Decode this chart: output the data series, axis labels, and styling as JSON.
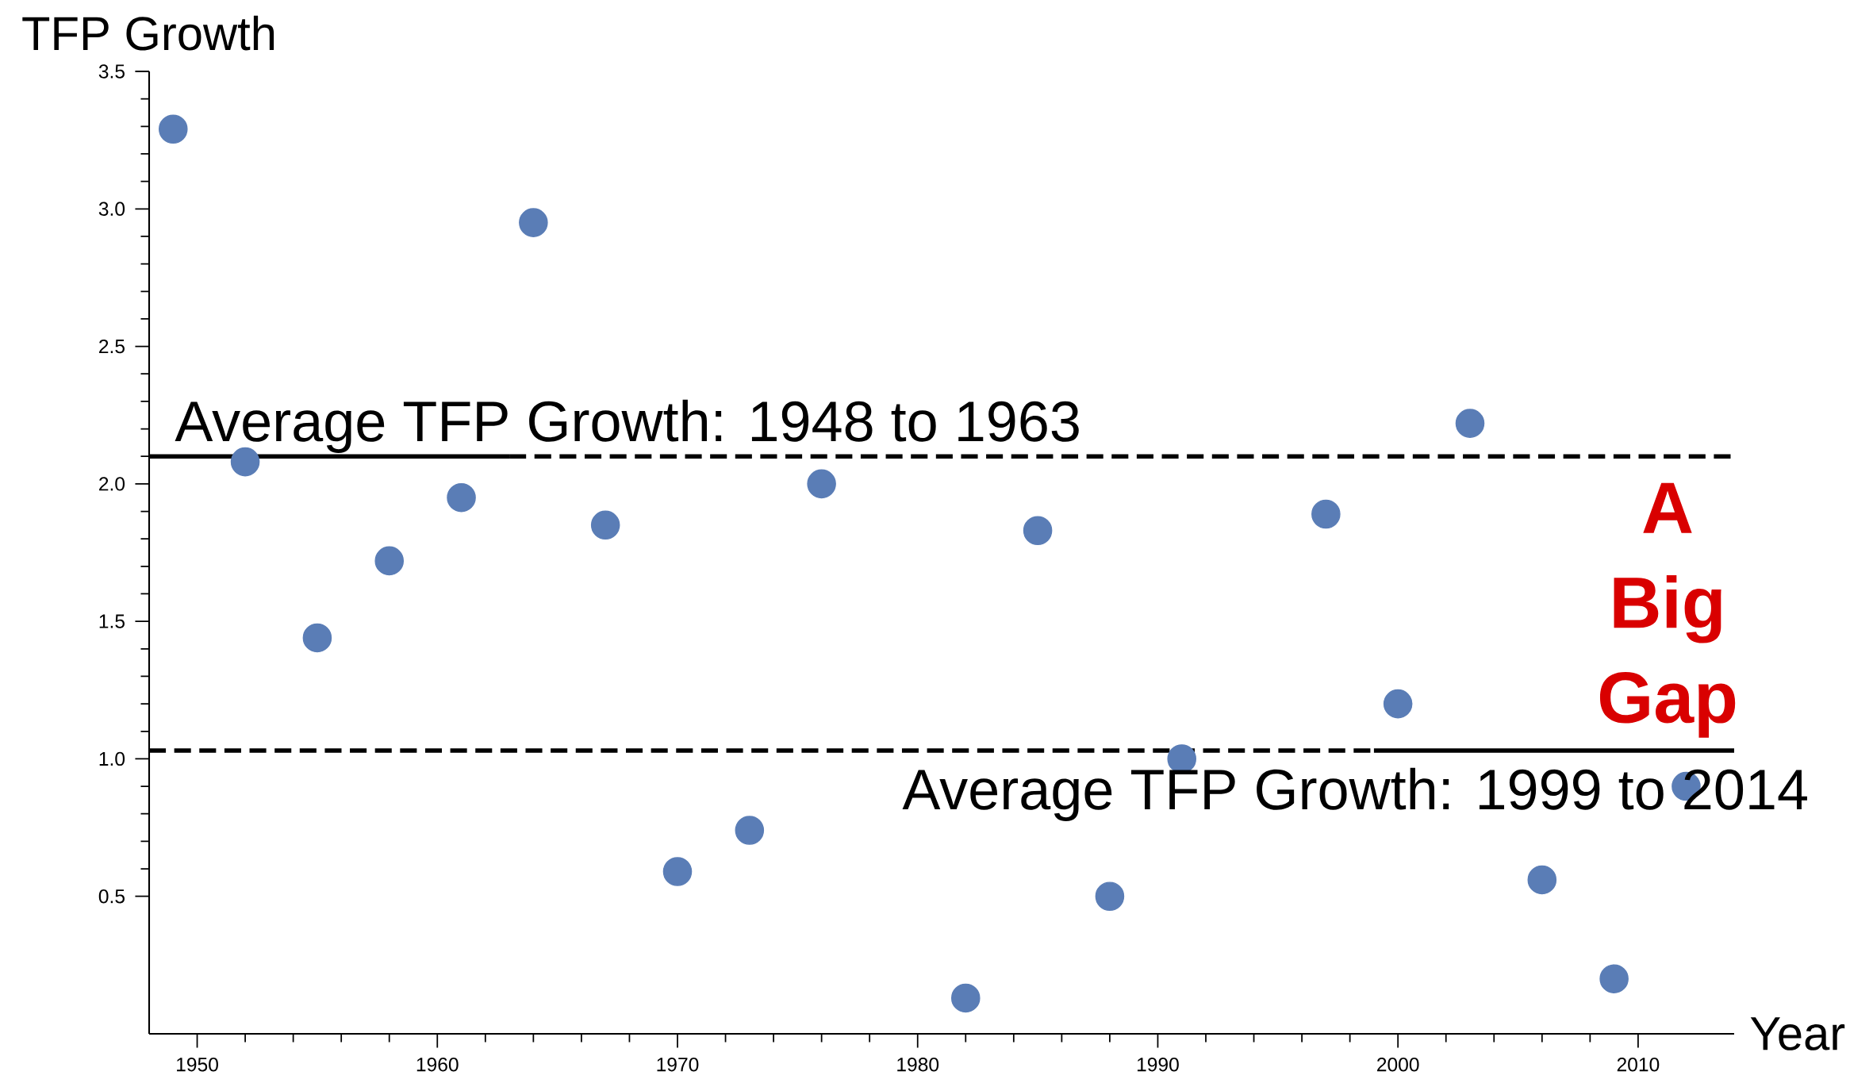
{
  "chart_data": {
    "type": "scatter",
    "xlabel": "Year",
    "ylabel": "TFP Growth",
    "marker": "circle",
    "xlim": [
      1948,
      2014
    ],
    "xticks": [
      1950,
      1960,
      1970,
      1980,
      1990,
      2000,
      2010
    ],
    "ylim": [
      0,
      3.5
    ],
    "yticks": [
      {
        "value": 0.5,
        "label": "0.5"
      },
      {
        "value": 1.0,
        "label": "1.0"
      },
      {
        "value": 1.5,
        "label": "1.5"
      },
      {
        "value": 2.0,
        "label": "2.0"
      },
      {
        "value": 2.5,
        "label": "2.5"
      },
      {
        "value": 3.0,
        "label": "3.0"
      },
      {
        "value": 3.5,
        "label": "3.5"
      }
    ],
    "series": [
      {
        "color": "#5a7db6",
        "x": [
          1949,
          1952,
          1955,
          1958,
          1961,
          1964,
          1967,
          1970,
          1973,
          1976,
          1982,
          1985,
          1988,
          1991,
          1997,
          2000,
          2003,
          2006,
          2009,
          2012
        ],
        "values": [
          3.29,
          2.08,
          1.44,
          1.72,
          1.95,
          2.95,
          1.85,
          0.59,
          0.74,
          2.0,
          0.13,
          1.83,
          0.5,
          1.0,
          1.89,
          1.2,
          2.22,
          0.56,
          0.2,
          0.9
        ]
      },
      {
        "type": "line",
        "marker": "none",
        "color": "#000000",
        "line_style": "solid",
        "x": [
          1948,
          1963
        ],
        "values": [
          2.1,
          2.1
        ]
      },
      {
        "type": "line",
        "marker": "none",
        "color": "#000000",
        "line_style": "dashed",
        "x": [
          1963,
          2014
        ],
        "values": [
          2.1,
          2.1
        ]
      },
      {
        "type": "line",
        "marker": "none",
        "color": "#000000",
        "line_style": "dashed",
        "x": [
          1948,
          1999
        ],
        "values": [
          1.03,
          1.03
        ]
      },
      {
        "type": "line",
        "marker": "none",
        "color": "#000000",
        "line_style": "solid",
        "x": [
          1999,
          2014
        ],
        "values": [
          1.03,
          1.03
        ]
      }
    ],
    "annotations": [
      {
        "text": "Average TFP Growth: 1948 to 1963",
        "x": 1948,
        "y": 2.1
      },
      {
        "text": "Average TFP Growth: 1999 to 2014",
        "x": 2014,
        "y": 1.03
      },
      "A Big Gap"
    ]
  }
}
